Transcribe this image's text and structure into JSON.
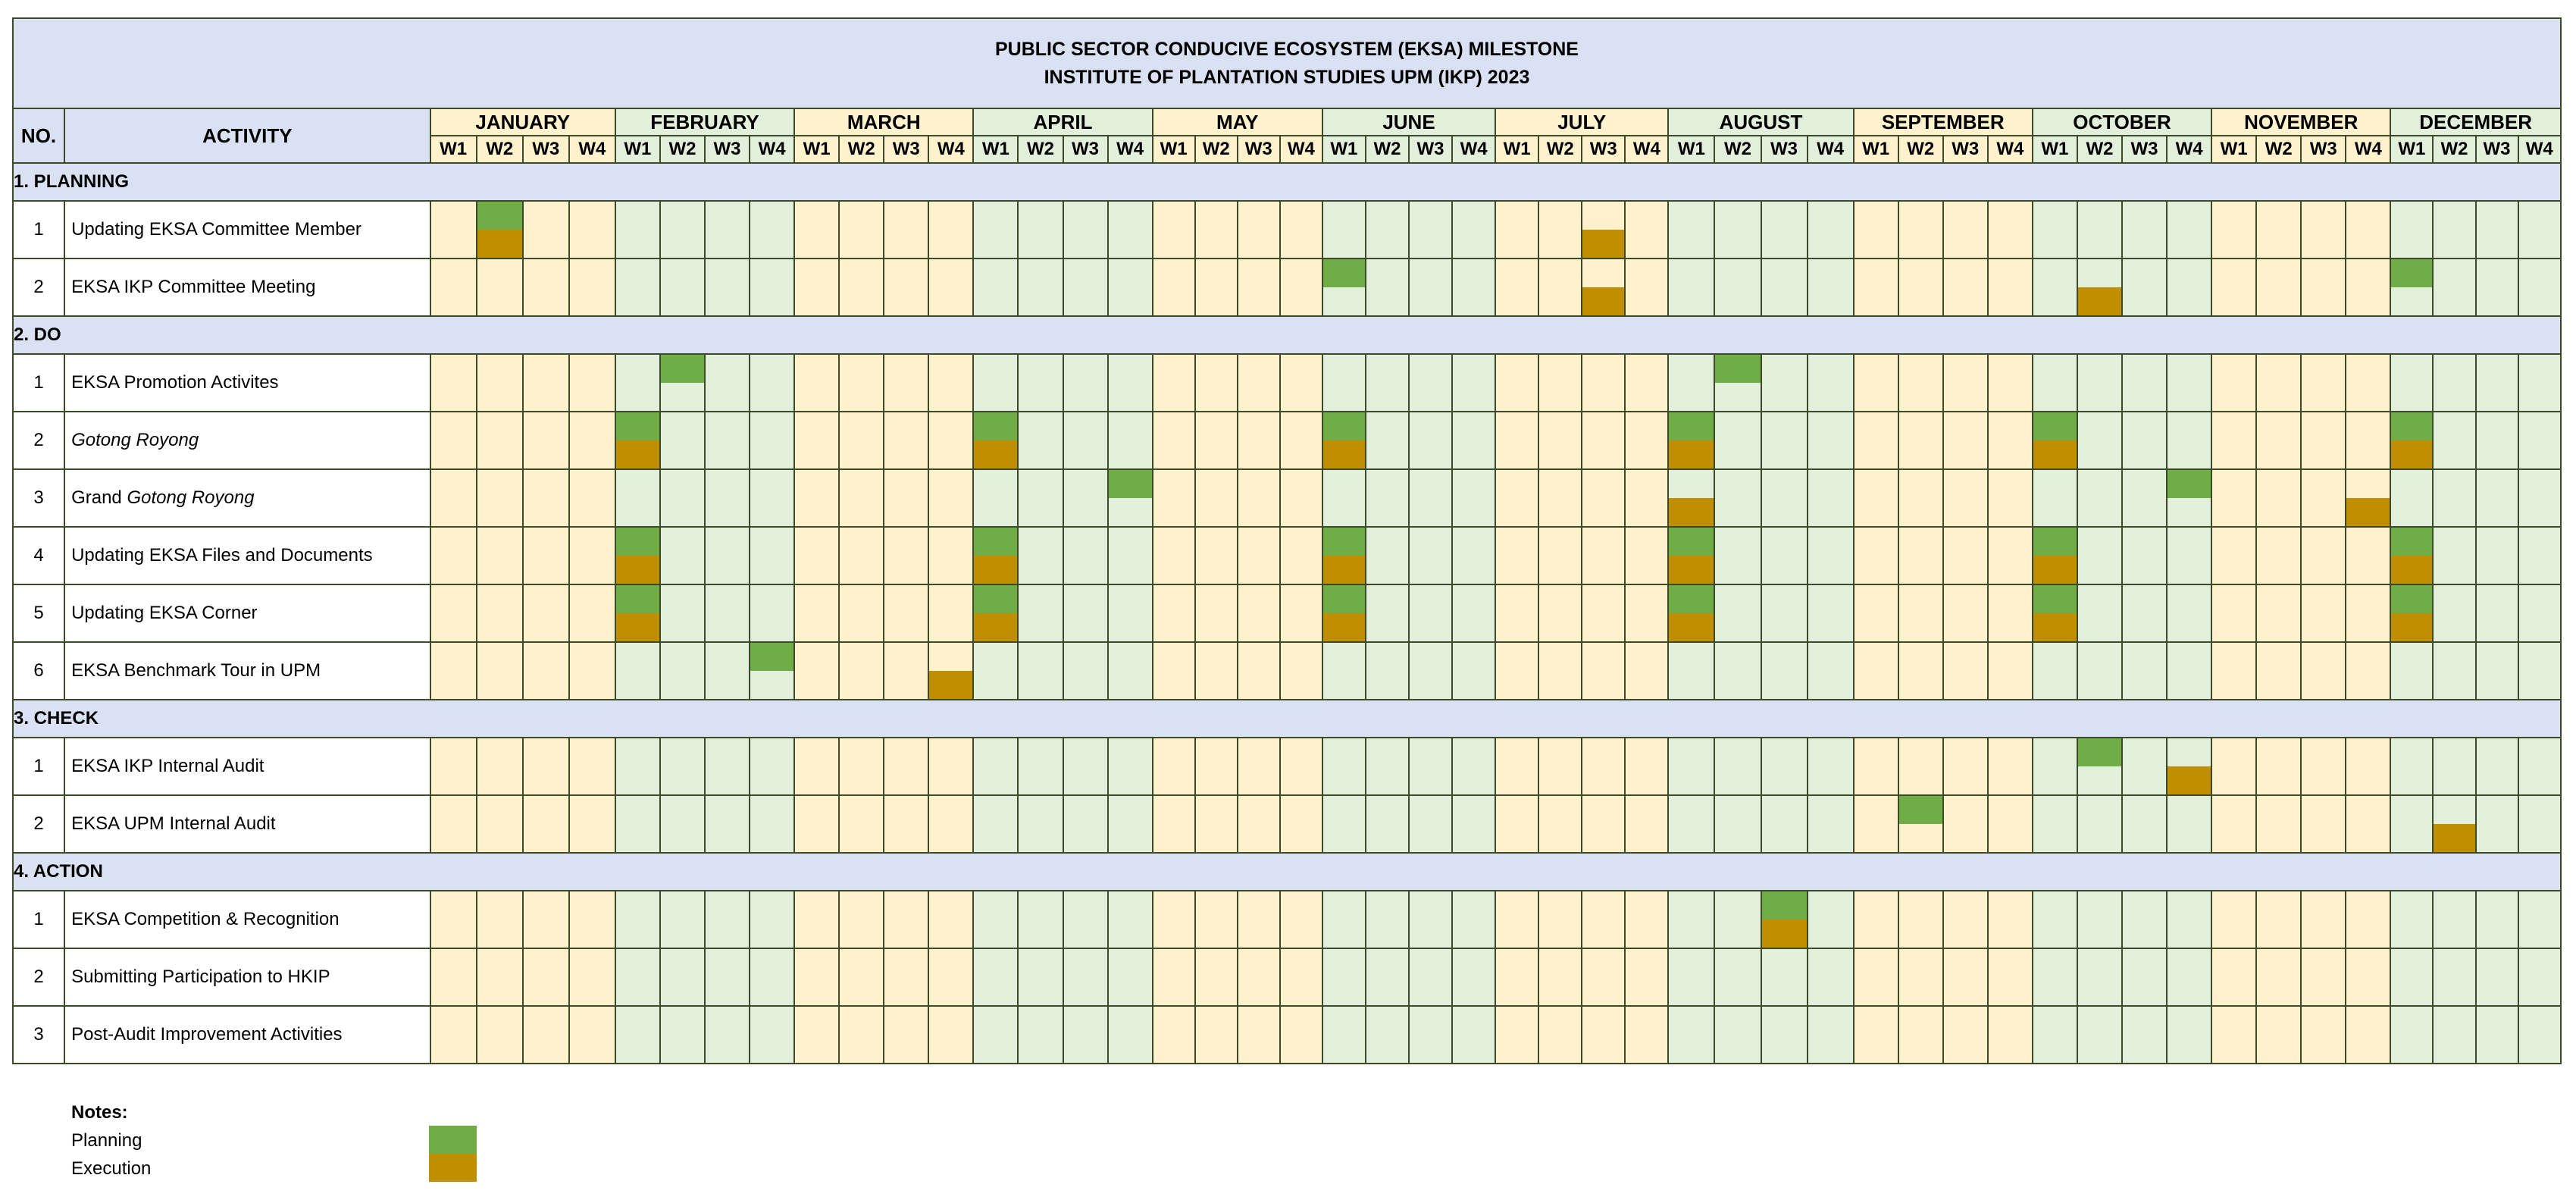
{
  "title": {
    "line1": "PUBLIC SECTOR CONDUCIVE ECOSYSTEM (EKSA) MILESTONE",
    "line2": "INSTITUTE OF PLANTATION STUDIES UPM (IKP) 2023"
  },
  "headers": {
    "no": "NO.",
    "activity": "ACTIVITY"
  },
  "months": [
    "JANUARY",
    "FEBRUARY",
    "MARCH",
    "APRIL",
    "MAY",
    "JUNE",
    "JULY",
    "AUGUST",
    "SEPTEMBER",
    "OCTOBER",
    "NOVEMBER",
    "DECEMBER"
  ],
  "weeks": [
    "W1",
    "W2",
    "W3",
    "W4"
  ],
  "colors": {
    "planning": "#70ad47",
    "execution": "#bf8f00",
    "header": "#d9e1f2",
    "month_odd": "#fff2cc",
    "month_even": "#e2efda"
  },
  "sections": [
    {
      "title": "1. PLANNING",
      "rows": [
        {
          "no": "1",
          "activity": [
            {
              "t": "Updating EKSA Committee Member"
            }
          ],
          "plan": [
            2
          ],
          "exec": [
            2,
            27
          ]
        },
        {
          "no": "2",
          "activity": [
            {
              "t": " EKSA IKP Committee Meeting"
            }
          ],
          "plan": [
            21,
            45
          ],
          "exec": [
            27,
            38
          ]
        }
      ]
    },
    {
      "title": "2. DO",
      "rows": [
        {
          "no": "1",
          "activity": [
            {
              "t": "EKSA Promotion Activites"
            }
          ],
          "plan": [
            6,
            30
          ],
          "exec": []
        },
        {
          "no": "2",
          "activity": [
            {
              "t": "Gotong Royong",
              "i": true
            }
          ],
          "plan": [
            5,
            13,
            21,
            29,
            37,
            45
          ],
          "exec": [
            5,
            13,
            21,
            29,
            37,
            45
          ]
        },
        {
          "no": "3",
          "activity": [
            {
              "t": "Grand "
            },
            {
              "t": "Gotong Royong",
              "i": true
            }
          ],
          "plan": [
            16,
            40
          ],
          "exec": [
            29,
            44
          ]
        },
        {
          "no": "4",
          "activity": [
            {
              "t": "Updating EKSA Files and Documents"
            }
          ],
          "plan": [
            5,
            13,
            21,
            29,
            37,
            45
          ],
          "exec": [
            5,
            13,
            21,
            29,
            37,
            45
          ]
        },
        {
          "no": "5",
          "activity": [
            {
              "t": "Updating EKSA Corner"
            }
          ],
          "plan": [
            5,
            13,
            21,
            29,
            37,
            45
          ],
          "exec": [
            5,
            13,
            21,
            29,
            37,
            45
          ]
        },
        {
          "no": "6",
          "activity": [
            {
              "t": "EKSA Benchmark Tour in UPM"
            }
          ],
          "plan": [
            8
          ],
          "exec": [
            12
          ]
        }
      ]
    },
    {
      "title": "3. CHECK",
      "rows": [
        {
          "no": "1",
          "activity": [
            {
              "t": "EKSA IKP Internal Audit"
            }
          ],
          "plan": [
            38
          ],
          "exec": [
            40
          ]
        },
        {
          "no": "2",
          "activity": [
            {
              "t": "EKSA UPM Internal Audit"
            }
          ],
          "plan": [
            34
          ],
          "exec": [
            46
          ]
        }
      ]
    },
    {
      "title": "4. ACTION",
      "rows": [
        {
          "no": "1",
          "activity": [
            {
              "t": "EKSA Competition & Recognition"
            }
          ],
          "plan": [
            31
          ],
          "exec": [
            31
          ]
        },
        {
          "no": "2",
          "activity": [
            {
              "t": "Submitting Participation to HKIP"
            }
          ],
          "plan": [],
          "exec": []
        },
        {
          "no": "3",
          "activity": [
            {
              "t": "Post-Audit Improvement Activities"
            }
          ],
          "plan": [],
          "exec": []
        }
      ]
    }
  ],
  "notes": {
    "title": "Notes:",
    "planning": "Planning",
    "execution": "Execution"
  }
}
